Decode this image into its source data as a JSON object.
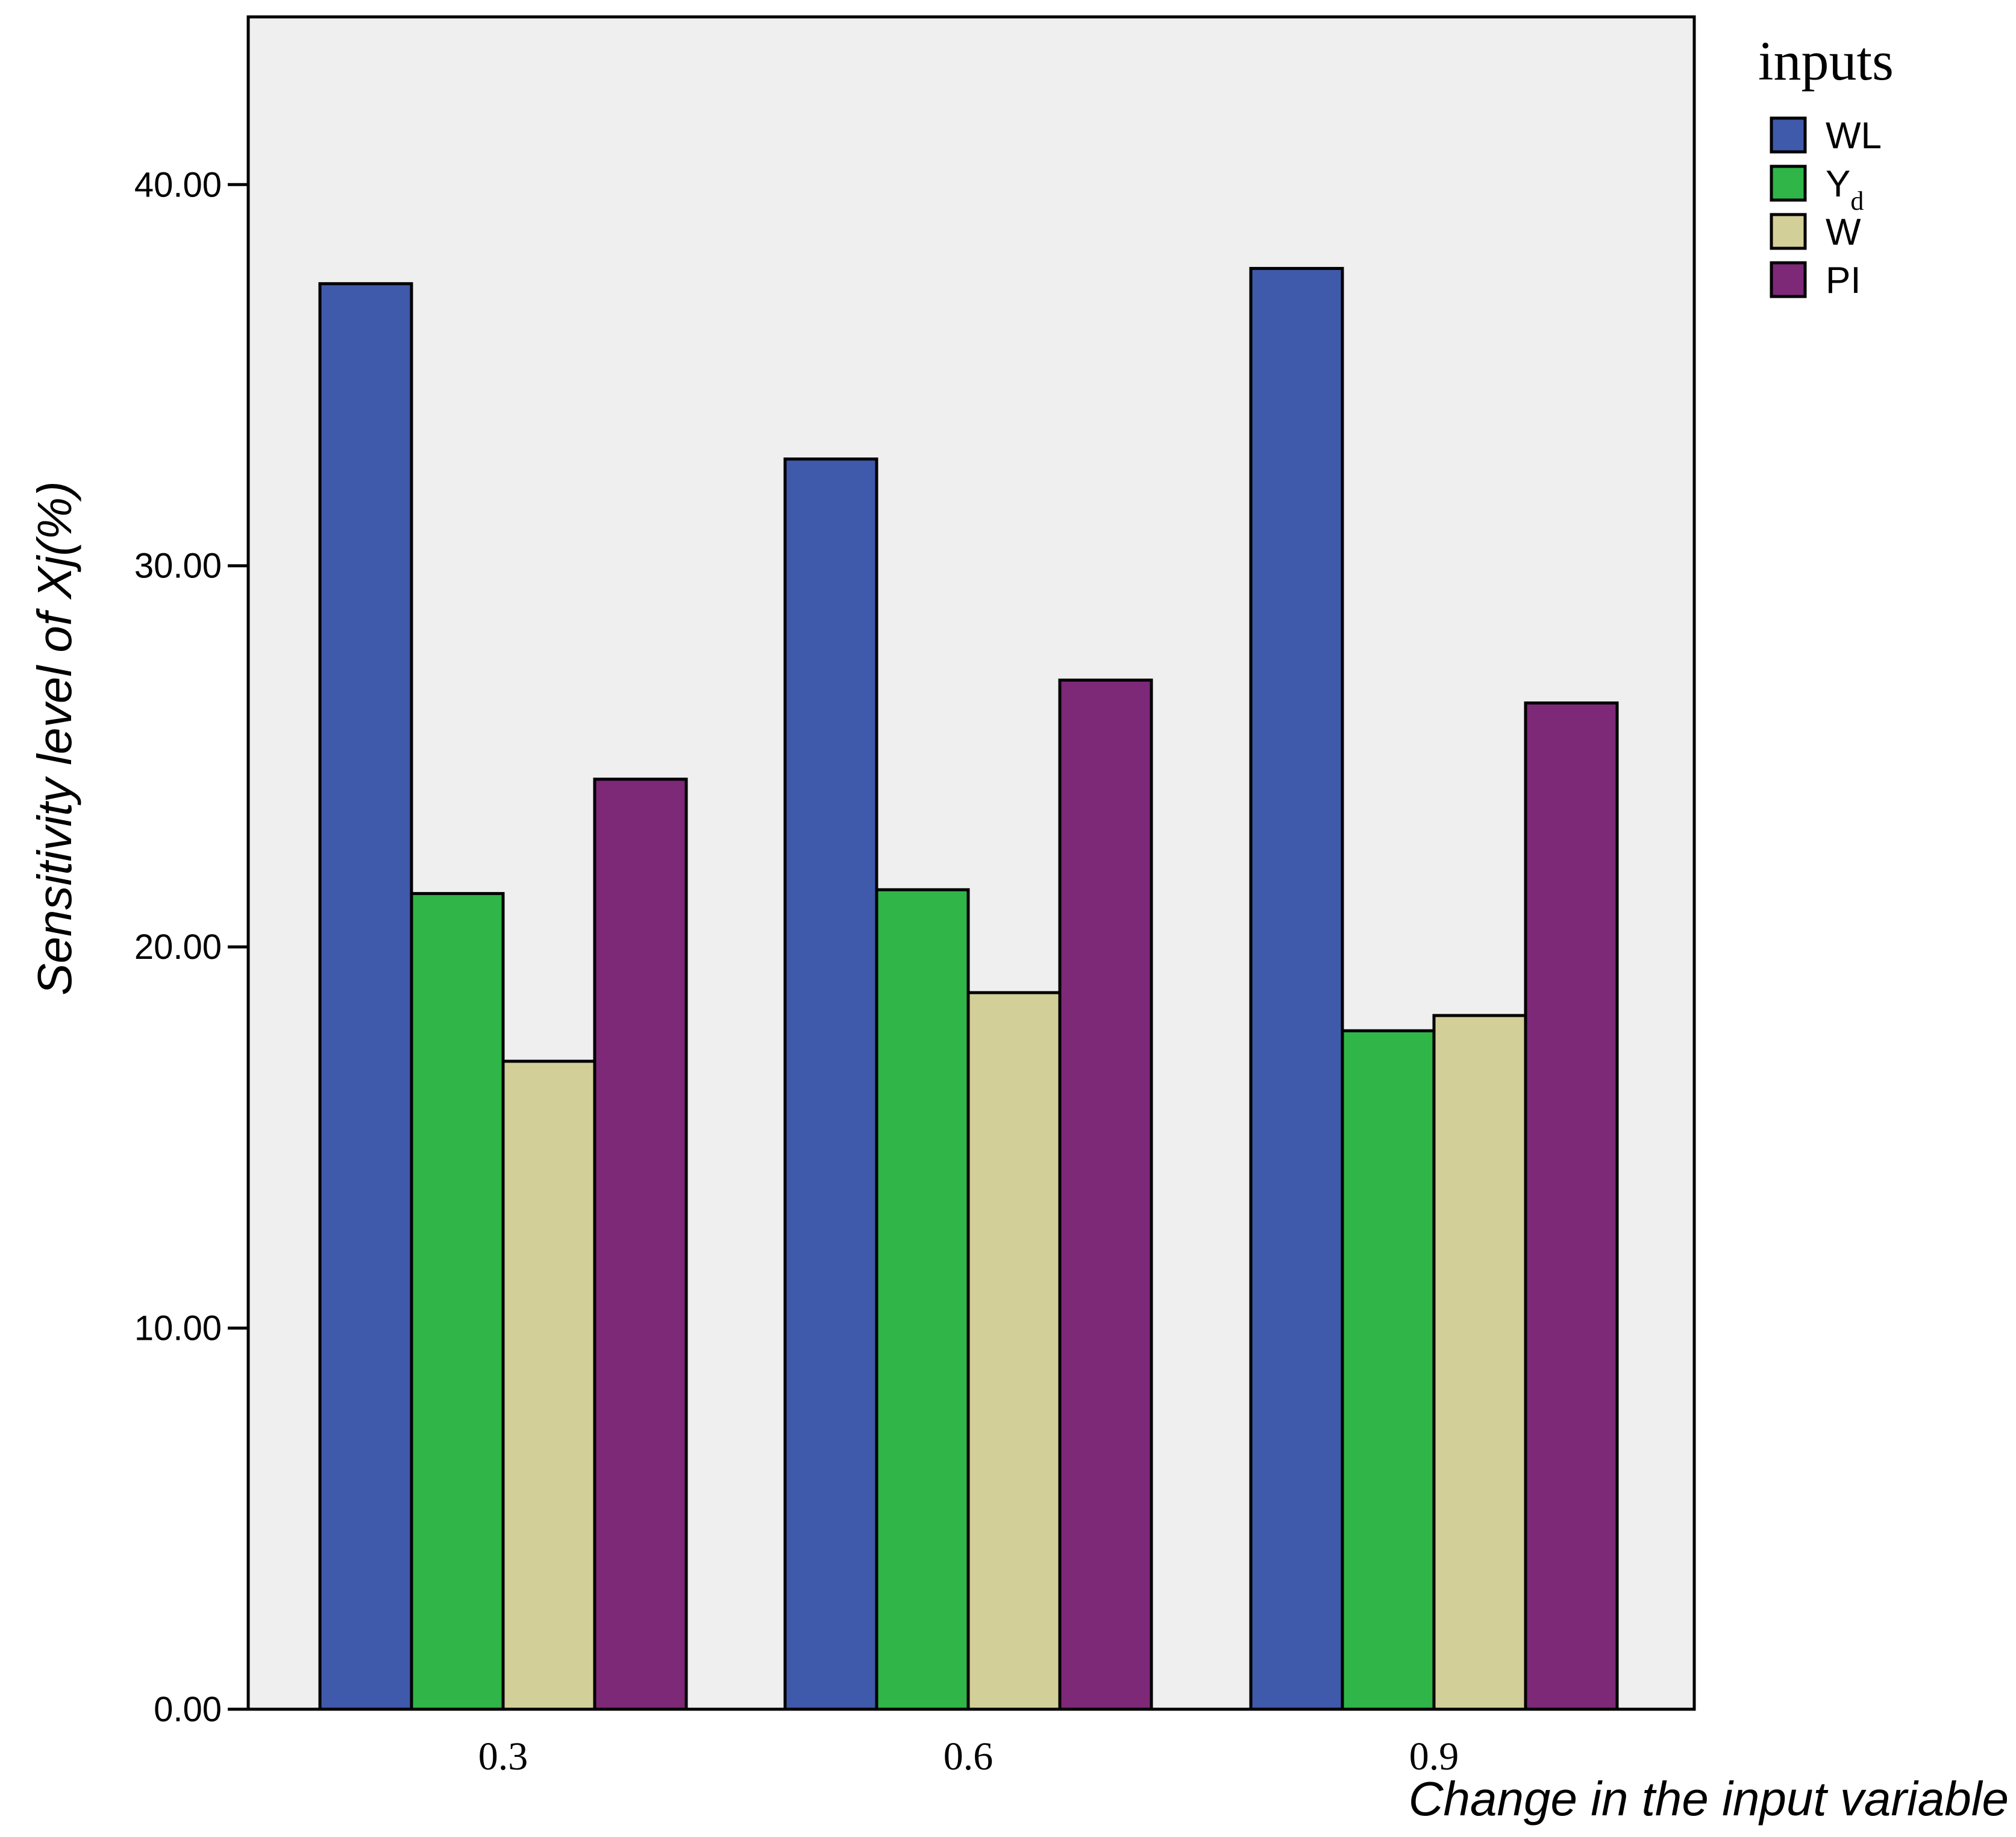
{
  "chart_data": {
    "type": "bar",
    "title": "",
    "xlabel": "Change in the input variable",
    "ylabel": "Sensitivity level of Xj(%)",
    "ylim": [
      0,
      44.4
    ],
    "yticks": [
      0,
      10,
      20,
      30,
      40
    ],
    "ytick_labels": [
      "0.00",
      "10.00",
      "20.00",
      "30.00",
      "40.00"
    ],
    "categories": [
      "0.3",
      "0.6",
      "0.9"
    ],
    "legend": {
      "title": "inputs",
      "placement": "top-right"
    },
    "series": [
      {
        "name": "WL",
        "label_main": "WL",
        "label_sub": "",
        "color": "#3f59ab",
        "values": [
          37.4,
          32.8,
          37.8
        ]
      },
      {
        "name": "Yd",
        "label_main": "Y",
        "label_sub": "d",
        "color": "#2fb548",
        "values": [
          21.4,
          21.5,
          17.8
        ]
      },
      {
        "name": "W",
        "label_main": "W",
        "label_sub": "",
        "color": "#d3cf98",
        "values": [
          17.0,
          18.8,
          18.2
        ]
      },
      {
        "name": "PI",
        "label_main": "PI",
        "label_sub": "",
        "color": "#7e2878",
        "values": [
          24.4,
          27.0,
          26.4
        ]
      }
    ],
    "plot_background": "#efefef",
    "grid": false
  }
}
